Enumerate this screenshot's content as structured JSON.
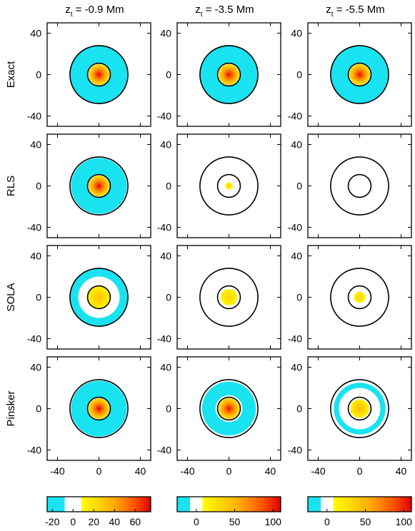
{
  "figure": {
    "columns": [
      {
        "title_var": "z",
        "title_sub": "t",
        "title_rest": " = -0.9 Mm"
      },
      {
        "title_var": "z",
        "title_sub": "t",
        "title_rest": " = -3.5 Mm"
      },
      {
        "title_var": "z",
        "title_sub": "t",
        "title_rest": " = -5.5 Mm"
      }
    ],
    "rows": [
      {
        "label": "Exact"
      },
      {
        "label": "RLS"
      },
      {
        "label": "SOLA"
      },
      {
        "label": "Pinsker"
      }
    ]
  },
  "chart_data": {
    "type": "heatmap",
    "x_range": [
      -50,
      50
    ],
    "y_range": [
      -50,
      50
    ],
    "x_ticks": [
      -40,
      0,
      40
    ],
    "y_ticks": [
      40,
      0,
      -40
    ],
    "x_tick_labels": [
      "-40",
      "0",
      "40"
    ],
    "y_tick_labels": [
      "40",
      "0",
      "-40"
    ],
    "contour_radii": [
      11,
      28
    ],
    "panels": [
      [
        {
          "row": "Exact",
          "column": "z_t = -0.9 Mm",
          "core_peak": 70,
          "core_radius": 10,
          "ring_value": -20,
          "ring_inner": 11,
          "ring_outer": 28
        },
        {
          "row": "Exact",
          "column": "z_t = -3.5 Mm",
          "core_peak": 100,
          "core_radius": 10,
          "ring_value": -20,
          "ring_inner": 11,
          "ring_outer": 28
        },
        {
          "row": "Exact",
          "column": "z_t = -5.5 Mm",
          "core_peak": 100,
          "core_radius": 10,
          "ring_value": -20,
          "ring_inner": 11,
          "ring_outer": 28
        }
      ],
      [
        {
          "row": "RLS",
          "column": "z_t = -0.9 Mm",
          "core_peak": 70,
          "core_radius": 10,
          "ring_value": -20,
          "ring_inner": 11,
          "ring_outer": 27
        },
        {
          "row": "RLS",
          "column": "z_t = -3.5 Mm",
          "core_peak": 25,
          "core_radius": 3.5,
          "ring_value": 0,
          "ring_inner": 0,
          "ring_outer": 0
        },
        {
          "row": "RLS",
          "column": "z_t = -5.5 Mm",
          "core_peak": 0,
          "core_radius": 0,
          "ring_value": 0,
          "ring_inner": 0,
          "ring_outer": 0
        }
      ],
      [
        {
          "row": "SOLA",
          "column": "z_t = -0.9 Mm",
          "core_peak": 25,
          "core_radius": 10.5,
          "ring_value": -12,
          "ring_inner": 20,
          "ring_outer": 28
        },
        {
          "row": "SOLA",
          "column": "z_t = -3.5 Mm",
          "core_peak": 25,
          "core_radius": 8,
          "ring_value": 0,
          "ring_inner": 0,
          "ring_outer": 0
        },
        {
          "row": "SOLA",
          "column": "z_t = -5.5 Mm",
          "core_peak": 25,
          "core_radius": 5.5,
          "ring_value": 0,
          "ring_inner": 0,
          "ring_outer": 0
        }
      ],
      [
        {
          "row": "Pinsker",
          "column": "z_t = -0.9 Mm",
          "core_peak": 70,
          "core_radius": 10,
          "ring_value": -20,
          "ring_inner": 11,
          "ring_outer": 27
        },
        {
          "row": "Pinsker",
          "column": "z_t = -3.5 Mm",
          "core_peak": 100,
          "core_radius": 10,
          "ring_value": -20,
          "ring_inner": 13,
          "ring_outer": 26
        },
        {
          "row": "Pinsker",
          "column": "z_t = -5.5 Mm",
          "core_peak": 40,
          "core_radius": 9,
          "ring_value": -10,
          "ring_inner": 20,
          "ring_outer": 25
        }
      ]
    ],
    "colorbars": [
      {
        "min": -25,
        "max": 75,
        "ticks": [
          -20,
          0,
          20,
          40,
          60
        ],
        "tick_labels": [
          "-20",
          "0",
          "20",
          "40",
          "60"
        ]
      },
      {
        "min": -25,
        "max": 110,
        "ticks": [
          0,
          50,
          100
        ],
        "tick_labels": [
          "0",
          "50",
          "100"
        ]
      },
      {
        "min": -25,
        "max": 110,
        "ticks": [
          0,
          50,
          100
        ],
        "tick_labels": [
          "0",
          "50",
          "100"
        ]
      }
    ]
  }
}
